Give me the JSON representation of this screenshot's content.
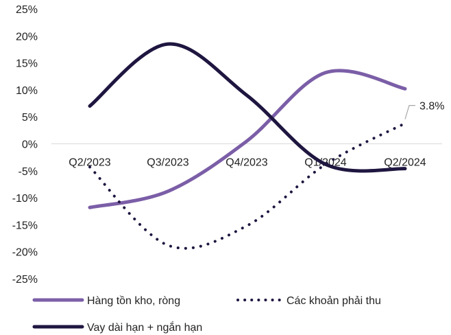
{
  "chart_data": {
    "type": "line",
    "title": "",
    "xlabel": "",
    "ylabel": "",
    "ylim": [
      -25,
      25
    ],
    "yticks": [
      25,
      20,
      15,
      10,
      5,
      0,
      -5,
      -10,
      -15,
      -20,
      -25
    ],
    "ytick_labels": [
      "25%",
      "20%",
      "15%",
      "10%",
      "5%",
      "0%",
      "-5%",
      "-10%",
      "-15%",
      "-20%",
      "-25%"
    ],
    "categories": [
      "Q2/2023",
      "Q3/2023",
      "Q4/2023",
      "Q1/2024",
      "Q2/2024"
    ],
    "grid": false,
    "legend_position": "bottom",
    "series": [
      {
        "name": "Hàng tồn kho, ròng",
        "values": [
          -11.8,
          -8.8,
          0.5,
          13.2,
          10.2
        ],
        "color": "#7b5ea7",
        "style": "solid"
      },
      {
        "name": "Các khoản phải thu",
        "values": [
          -4.3,
          -18.8,
          -15.2,
          -3.8,
          3.8
        ],
        "color": "#1f1640",
        "style": "dotted"
      },
      {
        "name": "Vay dài hạn + ngắn hạn",
        "values": [
          7.0,
          18.5,
          9.0,
          -3.8,
          -4.6
        ],
        "color": "#1f1640",
        "style": "solid"
      }
    ],
    "annotations": [
      {
        "series": "Các khoản phải thu",
        "point": "Q2/2024",
        "text": "3.8%"
      }
    ]
  }
}
